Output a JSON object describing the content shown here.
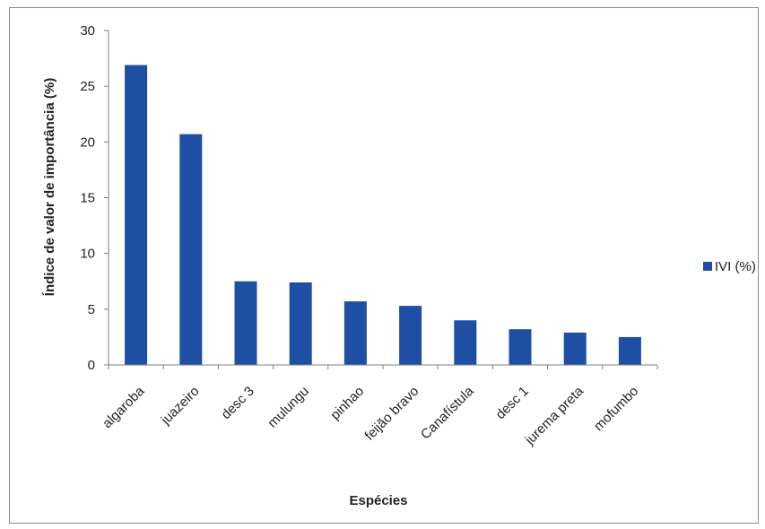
{
  "chart_data": {
    "type": "bar",
    "categories": [
      "algaroba",
      "juazeiro",
      "desc 3",
      "mulungu",
      "pinhao",
      "feijão bravo",
      "Canafístula",
      "desc 1",
      "jurema preta",
      "mofumbo"
    ],
    "series": [
      {
        "name": "IVI (%)",
        "values": [
          26.9,
          20.7,
          7.5,
          7.4,
          5.7,
          5.3,
          4.0,
          3.2,
          2.9,
          2.5
        ]
      }
    ],
    "xlabel": "Espécies",
    "ylabel": "Índice de valor de importância (%)",
    "ylim": [
      0,
      30
    ],
    "yticks": [
      0,
      5,
      10,
      15,
      20,
      25,
      30
    ],
    "legend_position": "right",
    "grid": false,
    "colors": {
      "bar": "#1f4ea5",
      "axis": "#7f7f7f"
    }
  }
}
